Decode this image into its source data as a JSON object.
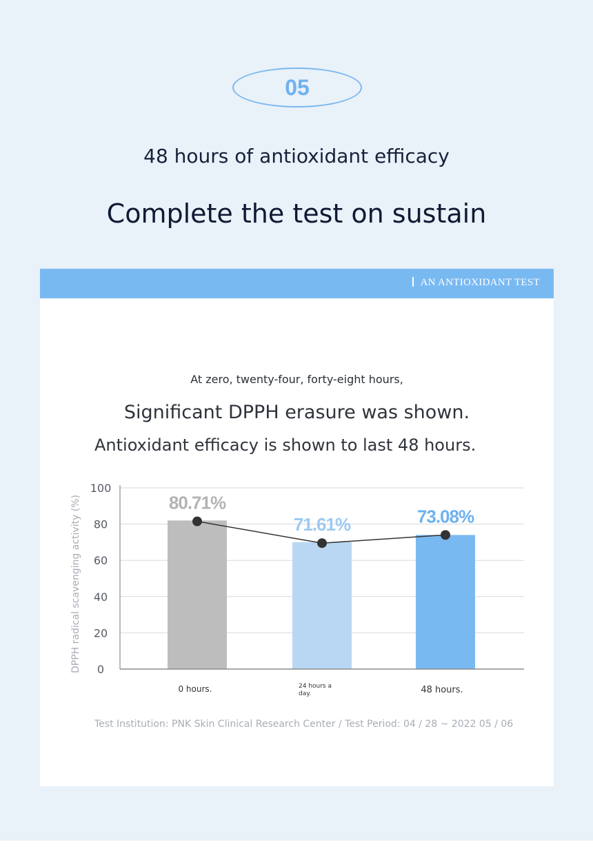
{
  "step_number": "05",
  "subtitle": "48 hours of antioxidant efficacy",
  "headline": "Complete the test on sustain",
  "card": {
    "header_label": "AN ANTIOXIDANT TEST",
    "intro_line1": "At zero, twenty-four, forty-eight hours,",
    "intro_line2": "Significant DPPH erasure was shown.",
    "intro_line3": "Antioxidant efficacy is shown to last 48 hours."
  },
  "footnote": "Test Institution: PNK Skin Clinical Research Center / Test Period: 04 / 28 ~ 2022 05 / 06",
  "colors": {
    "accent": "#79b9f2",
    "bar_0h": "#bdbdbd",
    "bar_24h": "#b9d7f2",
    "bar_48h": "#79b9f2",
    "label_0h": "#b3b3b3",
    "label_24h": "#9ccaf2",
    "label_48h": "#6eb1ef"
  },
  "chart_data": {
    "type": "bar",
    "categories": [
      "0 hours.",
      "24 hours a day.",
      "48 hours."
    ],
    "values": [
      80.71,
      71.61,
      73.08
    ],
    "bar_values": [
      82,
      70,
      74
    ],
    "line_values": [
      81.5,
      69.5,
      74
    ],
    "data_labels": [
      "80.71%",
      "71.61%",
      "73.08%"
    ],
    "ylabel": "DPPH radical scavenging activity (%)",
    "ylim": [
      0,
      100
    ],
    "yticks": [
      "0",
      "20",
      "40",
      "60",
      "80",
      "100"
    ],
    "grid": true,
    "line_overlay": true
  }
}
